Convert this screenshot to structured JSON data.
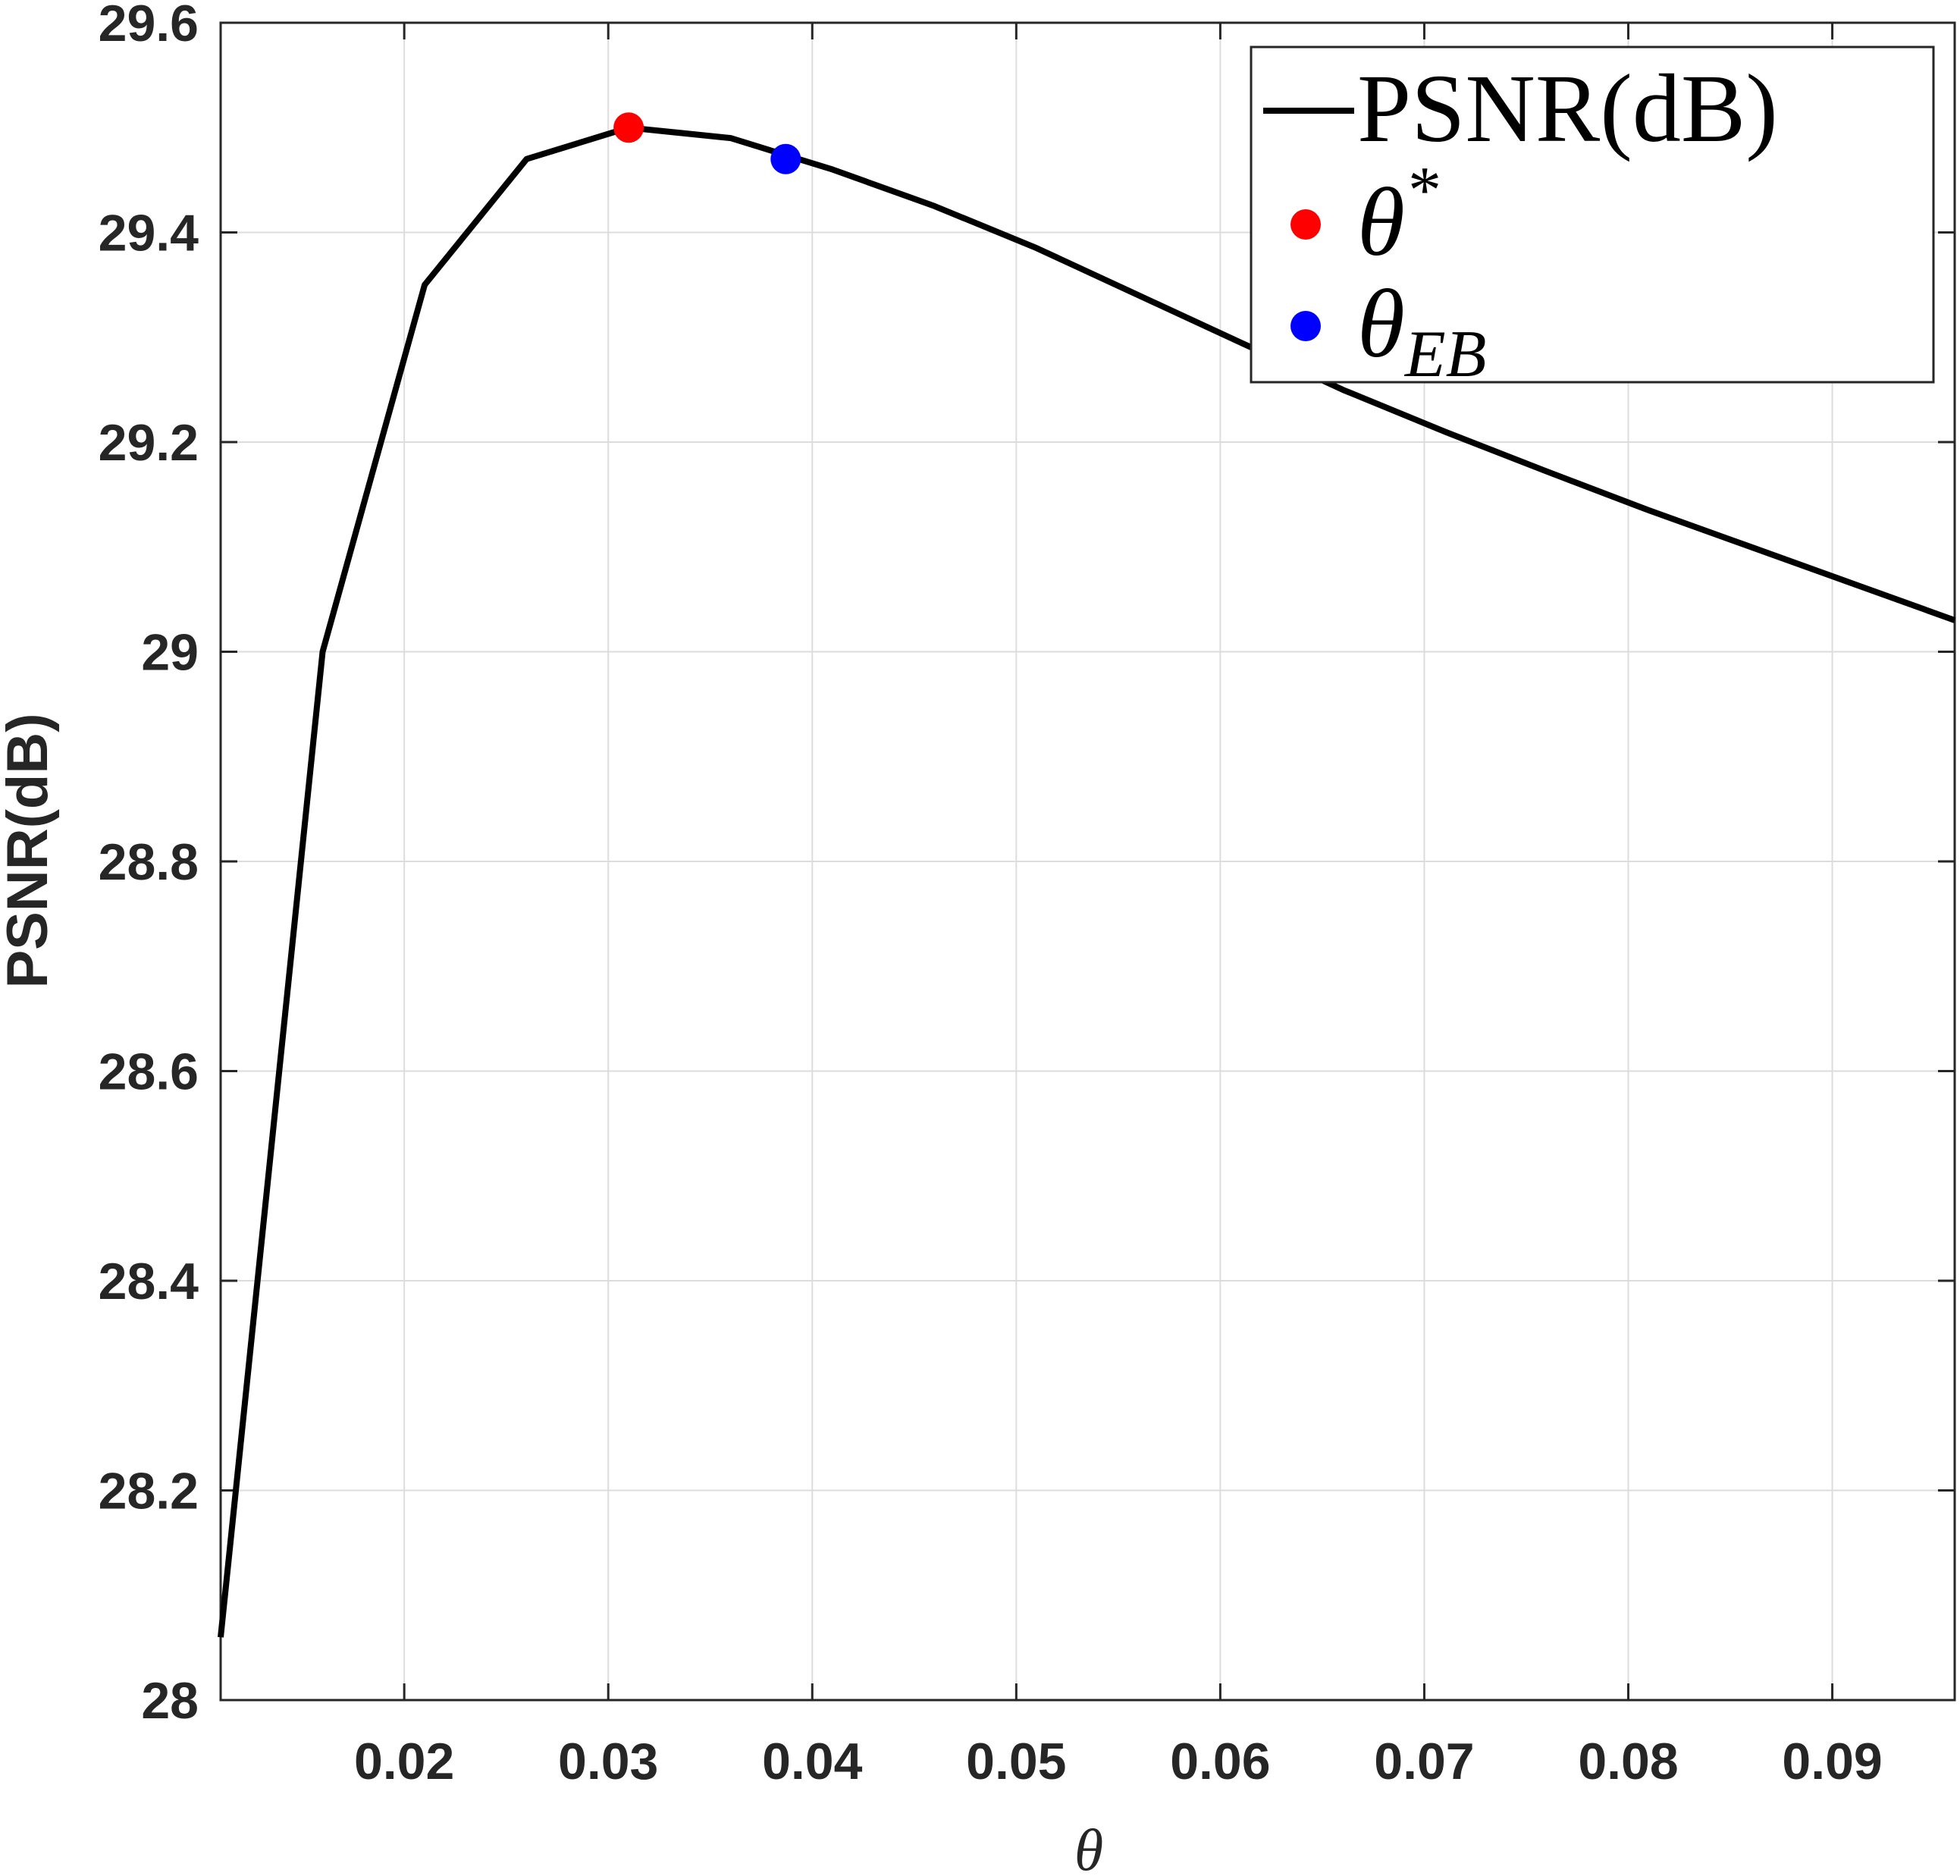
{
  "chart_data": {
    "type": "line",
    "xlabel": "θ",
    "ylabel": "PSNR(dB)",
    "xlim": [
      0.011,
      0.096
    ],
    "ylim": [
      28,
      29.6
    ],
    "xticks": [
      "0.02",
      "0.03",
      "0.04",
      "0.05",
      "0.06",
      "0.07",
      "0.08",
      "0.09"
    ],
    "yticks": [
      "28",
      "28.2",
      "28.4",
      "28.6",
      "28.8",
      "29",
      "29.2",
      "29.4",
      "29.6"
    ],
    "grid": true,
    "legend_position": "top-right",
    "series": [
      {
        "name": "PSNR(dB)",
        "color": "#000000",
        "x": [
          0.011,
          0.016,
          0.021,
          0.026,
          0.031,
          0.036,
          0.041,
          0.046,
          0.051,
          0.056,
          0.061,
          0.066,
          0.071,
          0.076,
          0.081,
          0.086,
          0.091,
          0.096
        ],
        "y": [
          28.06,
          29.0,
          29.35,
          29.47,
          29.5,
          29.49,
          29.46,
          29.425,
          29.385,
          29.34,
          29.295,
          29.25,
          29.21,
          29.172,
          29.135,
          29.1,
          29.065,
          29.03
        ]
      }
    ],
    "markers": [
      {
        "label_base": "θ",
        "label_sup": "*",
        "color": "#ff0000",
        "x": 0.031,
        "y": 29.5
      },
      {
        "label_base": "θ",
        "label_sub": "EB",
        "color": "#0000ff",
        "x": 0.0387,
        "y": 29.47
      }
    ]
  }
}
